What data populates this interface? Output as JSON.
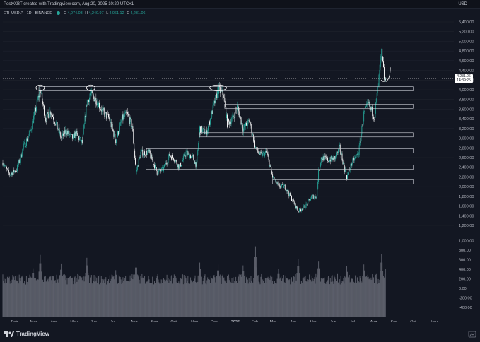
{
  "header": {
    "credit": "PostyXBT created with TradingView.com, Aug 20, 2025 10:20 UTC+1",
    "currency": "USD"
  },
  "legend": {
    "symbol": "ETHUSD.P · 1D · BINANCE",
    "open_k": "O",
    "open": "4,074.03",
    "high_k": "H",
    "high": "4,240.97",
    "low_k": "L",
    "low": "4,061.12",
    "close_k": "C",
    "close": "4,231.06"
  },
  "price_axis": {
    "ticks": [
      "5,400.00",
      "5,200.00",
      "5,000.00",
      "4,800.00",
      "4,600.00",
      "4,400.00",
      "4,200.00",
      "4,000.00",
      "3,800.00",
      "3,600.00",
      "3,400.00",
      "3,200.00",
      "3,000.00",
      "2,800.00",
      "2,600.00",
      "2,400.00",
      "2,200.00",
      "2,000.00",
      "1,800.00",
      "1,600.00",
      "1,400.00",
      "1,200.00"
    ],
    "current_price": "4,231.06",
    "countdown": "14:39:25"
  },
  "volume_axis": {
    "ticks": [
      "1,000.00",
      "800.00",
      "600.00",
      "400.00",
      "200.00",
      "0.00",
      "-200.00",
      "-400.00"
    ]
  },
  "time_axis": {
    "ticks": [
      "Feb",
      "Mar",
      "Apr",
      "May",
      "Jun",
      "Jul",
      "Aug",
      "Sep",
      "Oct",
      "Nov",
      "Dec",
      "2025",
      "Feb",
      "Mar",
      "Apr",
      "May",
      "Jun",
      "Jul",
      "Aug",
      "Sep",
      "Oct",
      "Nov"
    ]
  },
  "branding": {
    "logo_text": "TradingView"
  },
  "colors": {
    "background": "#131722",
    "up": "#26a69a",
    "down": "#ffffff",
    "volume": "#787b86",
    "level_line": "#d1d4dc",
    "annotation": "#ffffff"
  },
  "chart_data": {
    "type": "candlestick",
    "symbol": "ETHUSD.P",
    "timeframe": "1D",
    "exchange": "BINANCE",
    "ylim": [
      1200,
      5500
    ],
    "x_range": [
      "2024-01-15",
      "2025-11-30"
    ],
    "series": [
      {
        "points": [
          [
            "2024-01-15",
            2500
          ],
          [
            "2024-01-25",
            2250
          ],
          [
            "2024-02-05",
            2350
          ],
          [
            "2024-02-15",
            2800
          ],
          [
            "2024-02-25",
            3100
          ],
          [
            "2024-03-05",
            3600
          ],
          [
            "2024-03-12",
            4000
          ],
          [
            "2024-03-20",
            3400
          ],
          [
            "2024-03-28",
            3550
          ],
          [
            "2024-04-05",
            3300
          ],
          [
            "2024-04-13",
            3000
          ],
          [
            "2024-04-20",
            3150
          ],
          [
            "2024-04-30",
            3000
          ],
          [
            "2024-05-05",
            3100
          ],
          [
            "2024-05-15",
            2900
          ],
          [
            "2024-05-22",
            3750
          ],
          [
            "2024-05-28",
            3900
          ],
          [
            "2024-06-05",
            3800
          ],
          [
            "2024-06-15",
            3550
          ],
          [
            "2024-06-25",
            3400
          ],
          [
            "2024-07-05",
            2950
          ],
          [
            "2024-07-15",
            3400
          ],
          [
            "2024-07-22",
            3500
          ],
          [
            "2024-07-30",
            3250
          ],
          [
            "2024-08-05",
            2300
          ],
          [
            "2024-08-12",
            2700
          ],
          [
            "2024-08-25",
            2700
          ],
          [
            "2024-09-06",
            2300
          ],
          [
            "2024-09-15",
            2350
          ],
          [
            "2024-09-25",
            2650
          ],
          [
            "2024-10-01",
            2600
          ],
          [
            "2024-10-10",
            2400
          ],
          [
            "2024-10-20",
            2700
          ],
          [
            "2024-10-30",
            2600
          ],
          [
            "2024-11-05",
            2450
          ],
          [
            "2024-11-10",
            3200
          ],
          [
            "2024-11-20",
            3100
          ],
          [
            "2024-12-01",
            3650
          ],
          [
            "2024-12-08",
            4000
          ],
          [
            "2024-12-16",
            3900
          ],
          [
            "2024-12-22",
            3300
          ],
          [
            "2024-12-30",
            3400
          ],
          [
            "2025-01-06",
            3650
          ],
          [
            "2025-01-15",
            3200
          ],
          [
            "2025-01-25",
            3350
          ],
          [
            "2025-02-03",
            2800
          ],
          [
            "2025-02-10",
            2650
          ],
          [
            "2025-02-20",
            2700
          ],
          [
            "2025-03-01",
            2200
          ],
          [
            "2025-03-10",
            2000
          ],
          [
            "2025-03-20",
            2000
          ],
          [
            "2025-03-28",
            1800
          ],
          [
            "2025-04-09",
            1500
          ],
          [
            "2025-04-20",
            1600
          ],
          [
            "2025-04-30",
            1800
          ],
          [
            "2025-05-07",
            1800
          ],
          [
            "2025-05-10",
            2300
          ],
          [
            "2025-05-14",
            2600
          ],
          [
            "2025-05-25",
            2550
          ],
          [
            "2025-06-05",
            2600
          ],
          [
            "2025-06-11",
            2800
          ],
          [
            "2025-06-22",
            2200
          ],
          [
            "2025-06-30",
            2500
          ],
          [
            "2025-07-10",
            2700
          ],
          [
            "2025-07-18",
            3500
          ],
          [
            "2025-07-25",
            3700
          ],
          [
            "2025-08-03",
            3450
          ],
          [
            "2025-08-09",
            4100
          ],
          [
            "2025-08-14",
            4750
          ],
          [
            "2025-08-19",
            4150
          ],
          [
            "2025-08-20",
            4231
          ]
        ]
      }
    ],
    "volume": [
      [
        "2024-03-01",
        420
      ],
      [
        "2024-03-12",
        700
      ],
      [
        "2024-04-13",
        520
      ],
      [
        "2024-05-22",
        640
      ],
      [
        "2024-07-05",
        380
      ],
      [
        "2024-08-05",
        580
      ],
      [
        "2024-11-10",
        540
      ],
      [
        "2024-12-08",
        500
      ],
      [
        "2025-01-15",
        480
      ],
      [
        "2025-02-03",
        880
      ],
      [
        "2025-03-10",
        400
      ],
      [
        "2025-04-09",
        620
      ],
      [
        "2025-05-10",
        560
      ],
      [
        "2025-06-22",
        460
      ],
      [
        "2025-07-18",
        500
      ],
      [
        "2025-08-14",
        720
      ],
      [
        "2025-08-20",
        400
      ]
    ],
    "horizontal_levels": [
      {
        "price": 4020,
        "from": "2024-03-10",
        "to": "2025-10-01"
      },
      {
        "price": 3660,
        "from": "2024-12-18",
        "to": "2025-10-01"
      },
      {
        "price": 3070,
        "from": "2024-11-10",
        "to": "2025-10-01"
      },
      {
        "price": 2740,
        "from": "2024-08-20",
        "to": "2025-10-01"
      },
      {
        "price": 2400,
        "from": "2024-08-20",
        "to": "2025-10-01"
      },
      {
        "price": 2100,
        "from": "2025-03-01",
        "to": "2025-10-01"
      }
    ],
    "highlighted_tops": [
      "2024-03-12",
      "2024-05-28",
      "2024-12-08",
      "2025-08-14"
    ]
  }
}
